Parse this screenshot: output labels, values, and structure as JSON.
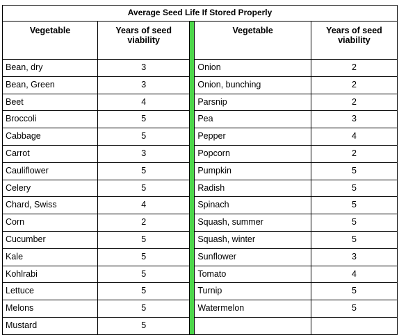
{
  "table": {
    "title": "Average Seed Life If Stored Properly",
    "headers": {
      "vegetable": "Vegetable",
      "years": "Years of seed viability"
    },
    "left": [
      {
        "name": "Bean, dry",
        "years": "3"
      },
      {
        "name": "Bean, Green",
        "years": "3"
      },
      {
        "name": "Beet",
        "years": "4"
      },
      {
        "name": "Broccoli",
        "years": "5"
      },
      {
        "name": "Cabbage",
        "years": "5"
      },
      {
        "name": "Carrot",
        "years": "3"
      },
      {
        "name": "Cauliflower",
        "years": "5"
      },
      {
        "name": "Celery",
        "years": "5"
      },
      {
        "name": "Chard, Swiss",
        "years": "4"
      },
      {
        "name": "Corn",
        "years": "2"
      },
      {
        "name": "Cucumber",
        "years": "5"
      },
      {
        "name": "Kale",
        "years": "5"
      },
      {
        "name": "Kohlrabi",
        "years": "5"
      },
      {
        "name": "Lettuce",
        "years": "5"
      },
      {
        "name": "Melons",
        "years": "5"
      },
      {
        "name": "Mustard",
        "years": "5"
      }
    ],
    "right": [
      {
        "name": "Onion",
        "years": "2"
      },
      {
        "name": "Onion, bunching",
        "years": "2"
      },
      {
        "name": "Parsnip",
        "years": "2"
      },
      {
        "name": "Pea",
        "years": "3"
      },
      {
        "name": "Pepper",
        "years": "4"
      },
      {
        "name": "Popcorn",
        "years": "2"
      },
      {
        "name": "Pumpkin",
        "years": "5"
      },
      {
        "name": "Radish",
        "years": "5"
      },
      {
        "name": "Spinach",
        "years": "5"
      },
      {
        "name": "Squash, summer",
        "years": "5"
      },
      {
        "name": "Squash, winter",
        "years": "5"
      },
      {
        "name": "Sunflower",
        "years": "3"
      },
      {
        "name": "Tomato",
        "years": "4"
      },
      {
        "name": "Turnip",
        "years": "5"
      },
      {
        "name": "Watermelon",
        "years": "5"
      },
      {
        "name": "",
        "years": ""
      }
    ],
    "divider_color": "#4cd64a"
  }
}
